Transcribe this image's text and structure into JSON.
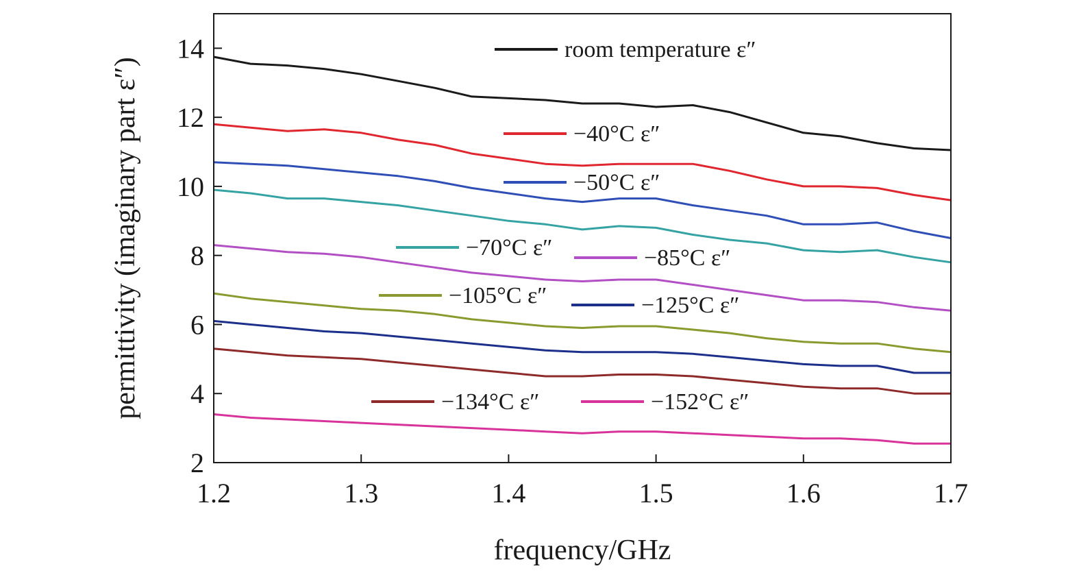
{
  "chart_data": {
    "type": "line",
    "xlabel": "frequency/GHz",
    "ylabel": "permittivity (imaginary part ε″)",
    "xlim": [
      1.2,
      1.7
    ],
    "ylim": [
      2,
      15
    ],
    "x_ticks": [
      1.2,
      1.3,
      1.4,
      1.5,
      1.6,
      1.7
    ],
    "x_tick_labels": [
      "1.2",
      "1.3",
      "1.4",
      "1.5",
      "1.6",
      "1.7"
    ],
    "y_ticks": [
      2,
      4,
      6,
      8,
      10,
      12,
      14
    ],
    "y_tick_labels": [
      "2",
      "4",
      "6",
      "8",
      "10",
      "12",
      "14"
    ],
    "grid": false,
    "legend_placement": "inside",
    "x": [
      1.2,
      1.225,
      1.25,
      1.275,
      1.3,
      1.325,
      1.35,
      1.375,
      1.4,
      1.425,
      1.45,
      1.475,
      1.5,
      1.525,
      1.55,
      1.575,
      1.6,
      1.625,
      1.65,
      1.675,
      1.7
    ],
    "series": [
      {
        "name": "room temperature ε″",
        "color": "#1a1a1a",
        "values": [
          13.75,
          13.55,
          13.5,
          13.4,
          13.25,
          13.05,
          12.85,
          12.6,
          12.55,
          12.5,
          12.4,
          12.4,
          12.3,
          12.35,
          12.15,
          11.85,
          11.55,
          11.45,
          11.25,
          11.1,
          11.05
        ]
      },
      {
        "name": "−40°C ε″",
        "color": "#e0262e",
        "values": [
          11.8,
          11.7,
          11.6,
          11.65,
          11.55,
          11.35,
          11.2,
          10.95,
          10.8,
          10.65,
          10.6,
          10.65,
          10.65,
          10.65,
          10.45,
          10.2,
          10.0,
          10.0,
          9.95,
          9.75,
          9.6
        ]
      },
      {
        "name": "−50°C ε″",
        "color": "#2f4fb7",
        "values": [
          10.7,
          10.65,
          10.6,
          10.5,
          10.4,
          10.3,
          10.15,
          9.95,
          9.8,
          9.65,
          9.55,
          9.65,
          9.65,
          9.45,
          9.3,
          9.15,
          8.9,
          8.9,
          8.95,
          8.7,
          8.5
        ]
      },
      {
        "name": "−70°C ε″",
        "color": "#35a3a3",
        "values": [
          9.9,
          9.8,
          9.65,
          9.65,
          9.55,
          9.45,
          9.3,
          9.15,
          9.0,
          8.9,
          8.75,
          8.85,
          8.8,
          8.6,
          8.45,
          8.35,
          8.15,
          8.1,
          8.15,
          7.95,
          7.8
        ]
      },
      {
        "name": "−85°C ε″",
        "color": "#b34fc4",
        "values": [
          8.3,
          8.2,
          8.1,
          8.05,
          7.95,
          7.8,
          7.65,
          7.5,
          7.4,
          7.3,
          7.25,
          7.3,
          7.3,
          7.15,
          7.0,
          6.85,
          6.7,
          6.7,
          6.65,
          6.5,
          6.4
        ]
      },
      {
        "name": "−105°C ε″",
        "color": "#8a9a2e",
        "values": [
          6.9,
          6.75,
          6.65,
          6.55,
          6.45,
          6.4,
          6.3,
          6.15,
          6.05,
          5.95,
          5.9,
          5.95,
          5.95,
          5.85,
          5.75,
          5.6,
          5.5,
          5.45,
          5.45,
          5.3,
          5.2
        ]
      },
      {
        "name": "−125°C ε″",
        "color": "#1c2f8a",
        "values": [
          6.1,
          6.0,
          5.9,
          5.8,
          5.75,
          5.65,
          5.55,
          5.45,
          5.35,
          5.25,
          5.2,
          5.2,
          5.2,
          5.15,
          5.05,
          4.95,
          4.85,
          4.8,
          4.8,
          4.6,
          4.6
        ]
      },
      {
        "name": "−134°C ε″",
        "color": "#8e2a2a",
        "values": [
          5.3,
          5.2,
          5.1,
          5.05,
          5.0,
          4.9,
          4.8,
          4.7,
          4.6,
          4.5,
          4.5,
          4.55,
          4.55,
          4.5,
          4.4,
          4.3,
          4.2,
          4.15,
          4.15,
          4.0,
          4.0
        ]
      },
      {
        "name": "−152°C ε″",
        "color": "#d8339a",
        "values": [
          3.4,
          3.3,
          3.25,
          3.2,
          3.15,
          3.1,
          3.05,
          3.0,
          2.95,
          2.9,
          2.85,
          2.9,
          2.9,
          2.85,
          2.8,
          2.75,
          2.7,
          2.7,
          2.65,
          2.55,
          2.55
        ]
      }
    ]
  }
}
